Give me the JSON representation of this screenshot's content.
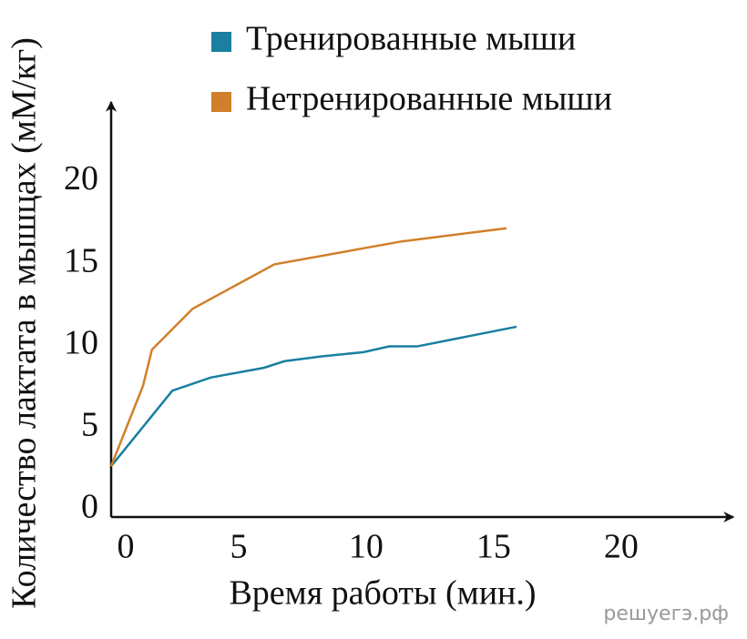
{
  "chart_data": {
    "type": "line",
    "xlabel": "Время работы (мин.)",
    "ylabel": "Количество лактата в мышцах (мМ/кг)",
    "watermark": "решуегэ.рф",
    "xlim": [
      0,
      24.4
    ],
    "xticks": [
      0,
      5,
      10,
      15,
      20
    ],
    "ylim": [
      0,
      25.3
    ],
    "yticks": [
      0,
      5,
      10,
      15,
      20
    ],
    "legend": "top",
    "series": [
      {
        "name": "Тренированные мыши",
        "color": "#1a7fa0",
        "x": [
          0,
          2.4,
          3.9,
          6,
          6.8,
          8.3,
          9.9,
          10.9,
          12,
          15.9
        ],
        "values": [
          3.1,
          7.7,
          8.5,
          9.1,
          9.5,
          9.8,
          10.05,
          10.4,
          10.4,
          11.6
        ]
      },
      {
        "name": "Нетренированные мыши",
        "color": "#d17f2a",
        "x": [
          0,
          1.25,
          1.6,
          3.2,
          6.4,
          11.4,
          15.5
        ],
        "values": [
          3.1,
          8.0,
          10.2,
          12.7,
          15.4,
          16.8,
          17.6
        ]
      }
    ]
  }
}
